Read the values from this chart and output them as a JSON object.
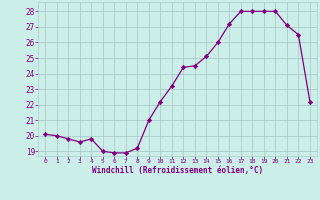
{
  "x": [
    0,
    1,
    2,
    3,
    4,
    5,
    6,
    7,
    8,
    9,
    10,
    11,
    12,
    13,
    14,
    15,
    16,
    17,
    18,
    19,
    20,
    21,
    22,
    23
  ],
  "y": [
    20.1,
    20.0,
    19.8,
    19.6,
    19.8,
    19.0,
    18.9,
    18.9,
    19.2,
    21.0,
    22.2,
    23.2,
    24.4,
    24.5,
    25.1,
    26.0,
    27.2,
    28.0,
    28.0,
    28.0,
    28.0,
    27.1,
    26.5,
    22.2
  ],
  "ylim_min": 18.7,
  "ylim_max": 28.6,
  "yticks": [
    19,
    20,
    21,
    22,
    23,
    24,
    25,
    26,
    27,
    28
  ],
  "xtick_labels": [
    "0",
    "1",
    "2",
    "3",
    "4",
    "5",
    "6",
    "7",
    "8",
    "9",
    "10",
    "11",
    "12",
    "13",
    "14",
    "15",
    "16",
    "17",
    "18",
    "19",
    "20",
    "21",
    "22",
    "23"
  ],
  "xlabel": "Windchill (Refroidissement éolien,°C)",
  "line_color": "#800080",
  "marker": "D",
  "marker_size": 2.2,
  "bg_color": "#cceee8",
  "grid_color": "#aacccc",
  "tick_color": "#800080",
  "label_color": "#800080",
  "figsize": [
    3.2,
    2.0
  ],
  "dpi": 100,
  "font_family": "monospace"
}
